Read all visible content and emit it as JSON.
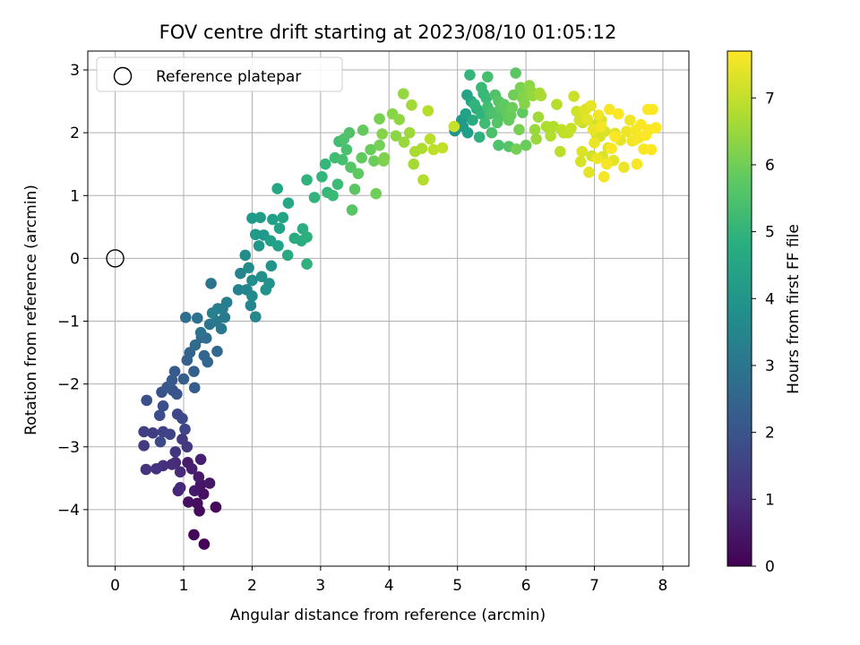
{
  "chart_data": {
    "type": "scatter",
    "title": "FOV centre drift starting at 2023/08/10 01:05:12",
    "xlabel": "Angular distance from reference (arcmin)",
    "ylabel": "Rotation from reference (arcmin)",
    "xlim": [
      -0.4,
      8.38
    ],
    "ylim": [
      -4.9,
      3.3
    ],
    "xticks": [
      0,
      1,
      2,
      3,
      4,
      5,
      6,
      7,
      8
    ],
    "yticks": [
      -4,
      -3,
      -2,
      -1,
      0,
      1,
      2,
      3
    ],
    "grid": true,
    "legend": {
      "position": "upper-left",
      "entries": [
        "Reference platepar"
      ]
    },
    "reference_point": {
      "x": 0,
      "y": 0,
      "marker": "open-circle"
    },
    "colorbar": {
      "label": "Hours from first FF file",
      "range": [
        0,
        7.7
      ],
      "ticks": [
        0,
        1,
        2,
        3,
        4,
        5,
        6,
        7
      ],
      "colormap": "viridis"
    },
    "points": [
      [
        1.3,
        -4.55,
        0.05
      ],
      [
        1.15,
        -4.4,
        0.1
      ],
      [
        1.47,
        -3.96,
        0.15
      ],
      [
        1.23,
        -4.02,
        0.2
      ],
      [
        1.2,
        -3.9,
        0.25
      ],
      [
        1.07,
        -3.88,
        0.3
      ],
      [
        1.29,
        -3.75,
        0.35
      ],
      [
        1.25,
        -3.6,
        0.4
      ],
      [
        1.38,
        -3.58,
        0.45
      ],
      [
        1.16,
        -3.7,
        0.5
      ],
      [
        1.22,
        -3.48,
        0.55
      ],
      [
        1.06,
        -3.25,
        0.6
      ],
      [
        1.12,
        -3.35,
        0.65
      ],
      [
        1.25,
        -3.2,
        0.7
      ],
      [
        0.92,
        -3.7,
        0.8
      ],
      [
        0.95,
        -3.65,
        0.85
      ],
      [
        0.88,
        -3.25,
        0.9
      ],
      [
        0.95,
        -3.4,
        0.95
      ],
      [
        0.83,
        -3.28,
        1.0
      ],
      [
        0.7,
        -3.3,
        1.05
      ],
      [
        0.6,
        -3.35,
        1.1
      ],
      [
        0.45,
        -3.36,
        1.15
      ],
      [
        0.88,
        -3.08,
        1.2
      ],
      [
        1.05,
        -3.0,
        1.25
      ],
      [
        0.98,
        -2.88,
        1.3
      ],
      [
        0.42,
        -2.98,
        1.35
      ],
      [
        0.55,
        -2.78,
        1.4
      ],
      [
        0.42,
        -2.76,
        1.45
      ],
      [
        0.7,
        -2.76,
        1.5
      ],
      [
        0.8,
        -2.8,
        1.55
      ],
      [
        1.02,
        -2.72,
        1.6
      ],
      [
        0.91,
        -2.48,
        1.65
      ],
      [
        0.98,
        -2.55,
        1.7
      ],
      [
        0.66,
        -2.92,
        1.75
      ],
      [
        0.65,
        -2.5,
        1.8
      ],
      [
        0.7,
        -2.35,
        1.85
      ],
      [
        0.46,
        -2.26,
        1.9
      ],
      [
        0.68,
        -2.13,
        1.95
      ],
      [
        0.84,
        -2.1,
        2.0
      ],
      [
        0.9,
        -2.16,
        2.05
      ],
      [
        0.76,
        -2.05,
        2.1
      ],
      [
        0.83,
        -1.94,
        2.15
      ],
      [
        0.87,
        -1.8,
        2.2
      ],
      [
        1.0,
        -1.92,
        2.25
      ],
      [
        1.16,
        -2.06,
        2.3
      ],
      [
        1.15,
        -1.8,
        2.35
      ],
      [
        1.05,
        -1.62,
        2.4
      ],
      [
        1.09,
        -1.5,
        2.45
      ],
      [
        1.3,
        -1.55,
        2.5
      ],
      [
        1.35,
        -1.65,
        2.55
      ],
      [
        1.49,
        -1.48,
        2.6
      ],
      [
        1.17,
        -1.38,
        2.65
      ],
      [
        1.26,
        -1.26,
        2.7
      ],
      [
        1.33,
        -1.27,
        2.75
      ],
      [
        1.03,
        -0.94,
        2.8
      ],
      [
        1.2,
        -0.95,
        2.85
      ],
      [
        1.25,
        -1.18,
        2.9
      ],
      [
        1.4,
        -0.4,
        2.95
      ],
      [
        1.38,
        -1.05,
        3.0
      ],
      [
        1.48,
        -1.0,
        3.05
      ],
      [
        1.55,
        -1.12,
        3.1
      ],
      [
        1.6,
        -0.94,
        3.15
      ],
      [
        1.57,
        -0.8,
        3.2
      ],
      [
        1.63,
        -0.7,
        3.25
      ],
      [
        1.5,
        -0.8,
        3.3
      ],
      [
        1.42,
        -0.87,
        3.35
      ],
      [
        1.8,
        -0.5,
        3.4
      ],
      [
        1.83,
        -0.24,
        3.45
      ],
      [
        1.92,
        -0.5,
        3.5
      ],
      [
        1.98,
        -0.75,
        3.55
      ]
    ],
    "points_b": [
      [
        2.05,
        -0.93,
        3.6
      ],
      [
        2.0,
        -0.6,
        3.65
      ],
      [
        1.95,
        -0.15,
        3.7
      ],
      [
        1.9,
        0.05,
        3.75
      ],
      [
        2.0,
        -0.35,
        3.8
      ],
      [
        2.14,
        -0.29,
        3.85
      ],
      [
        2.25,
        -0.4,
        3.9
      ],
      [
        2.2,
        -0.5,
        3.95
      ],
      [
        2.28,
        -0.12,
        4.0
      ],
      [
        2.1,
        0.2,
        4.05
      ],
      [
        2.17,
        0.37,
        4.1
      ],
      [
        2.05,
        0.38,
        4.15
      ],
      [
        2.0,
        0.64,
        4.2
      ],
      [
        2.12,
        0.65,
        4.25
      ],
      [
        2.3,
        0.62,
        4.3
      ],
      [
        2.27,
        0.28,
        4.35
      ],
      [
        2.38,
        0.2,
        4.4
      ],
      [
        2.4,
        0.48,
        4.45
      ],
      [
        2.45,
        0.65,
        4.5
      ],
      [
        2.37,
        1.11,
        4.55
      ],
      [
        2.53,
        0.88,
        4.6
      ],
      [
        2.52,
        0.05,
        4.65
      ],
      [
        2.62,
        0.32,
        4.7
      ],
      [
        2.72,
        0.28,
        4.75
      ],
      [
        2.74,
        0.47,
        4.8
      ],
      [
        2.8,
        0.34,
        4.85
      ],
      [
        2.8,
        -0.09,
        4.9
      ],
      [
        2.8,
        1.25,
        4.95
      ],
      [
        2.91,
        0.97,
        5.0
      ],
      [
        3.02,
        1.3,
        5.05
      ],
      [
        3.07,
        1.5,
        5.1
      ],
      [
        3.1,
        1.05,
        5.15
      ],
      [
        3.18,
        1.0,
        5.2
      ],
      [
        3.25,
        1.18,
        5.25
      ],
      [
        3.21,
        1.6,
        5.3
      ],
      [
        3.27,
        1.86,
        5.35
      ],
      [
        3.32,
        1.57,
        5.4
      ],
      [
        3.38,
        1.73,
        5.45
      ],
      [
        3.34,
        1.9,
        5.5
      ],
      [
        3.42,
        2.0,
        5.55
      ]
    ],
    "points_c": [
      [
        3.44,
        1.45,
        5.6
      ],
      [
        3.46,
        0.77,
        5.65
      ],
      [
        3.5,
        1.1,
        5.7
      ],
      [
        3.55,
        1.35,
        5.75
      ],
      [
        3.6,
        1.6,
        5.8
      ],
      [
        3.62,
        2.04,
        5.85
      ],
      [
        3.73,
        1.73,
        5.9
      ],
      [
        3.78,
        1.55,
        5.95
      ],
      [
        3.81,
        1.03,
        6.0
      ],
      [
        3.86,
        1.8,
        6.05
      ],
      [
        3.86,
        2.22,
        6.1
      ],
      [
        3.92,
        1.55,
        6.15
      ],
      [
        3.93,
        1.6,
        6.2
      ],
      [
        3.9,
        1.98,
        6.25
      ],
      [
        4.05,
        2.3,
        6.3
      ],
      [
        4.1,
        1.95,
        6.35
      ],
      [
        4.15,
        2.21,
        6.4
      ],
      [
        4.21,
        2.62,
        6.45
      ],
      [
        4.22,
        1.85,
        6.5
      ],
      [
        4.3,
        2.0,
        6.55
      ],
      [
        4.33,
        2.44,
        6.6
      ],
      [
        4.36,
        1.5,
        6.65
      ],
      [
        4.38,
        1.7,
        6.7
      ],
      [
        4.48,
        1.75,
        6.75
      ],
      [
        4.5,
        1.25,
        6.8
      ],
      [
        4.57,
        2.35,
        6.85
      ],
      [
        4.6,
        1.9,
        6.9
      ],
      [
        4.65,
        1.73,
        6.95
      ],
      [
        4.78,
        1.76,
        7.0
      ],
      [
        4.95,
        2.1,
        7.05
      ]
    ]
  },
  "series_all": {
    "points_d": [
      [
        4.96,
        2.03,
        4.0
      ],
      [
        5.06,
        2.2,
        4.1
      ],
      [
        5.08,
        2.1,
        4.2
      ],
      [
        5.15,
        2.0,
        4.3
      ],
      [
        5.12,
        2.3,
        4.4
      ],
      [
        5.14,
        2.6,
        4.5
      ],
      [
        5.2,
        2.5,
        4.6
      ],
      [
        5.22,
        2.2,
        4.7
      ],
      [
        5.28,
        2.38,
        4.8
      ],
      [
        5.32,
        1.93,
        4.9
      ],
      [
        5.35,
        2.3,
        5.0
      ],
      [
        5.38,
        2.62,
        5.1
      ],
      [
        5.42,
        2.55,
        5.2
      ],
      [
        5.4,
        2.15,
        5.3
      ],
      [
        5.44,
        2.41,
        5.35
      ],
      [
        5.47,
        2.3,
        5.4
      ],
      [
        5.5,
        2.0,
        5.45
      ],
      [
        5.52,
        2.32,
        5.5
      ],
      [
        5.55,
        2.6,
        5.55
      ],
      [
        5.58,
        2.16,
        5.6
      ],
      [
        5.6,
        2.5,
        5.65
      ],
      [
        5.63,
        2.4,
        5.7
      ],
      [
        5.68,
        2.45,
        5.75
      ],
      [
        5.72,
        2.3,
        5.8
      ],
      [
        5.75,
        2.2,
        5.85
      ],
      [
        5.78,
        2.28,
        5.9
      ],
      [
        5.8,
        2.4,
        5.95
      ],
      [
        5.82,
        2.6,
        6.0
      ],
      [
        5.86,
        1.74,
        6.05
      ],
      [
        5.9,
        2.05,
        6.1
      ],
      [
        5.92,
        2.72,
        6.15
      ],
      [
        5.95,
        2.55,
        6.2
      ],
      [
        5.98,
        2.46,
        6.25
      ],
      [
        6.02,
        2.6,
        6.3
      ],
      [
        6.05,
        2.75,
        6.35
      ],
      [
        6.08,
        2.65,
        6.4
      ],
      [
        6.1,
        2.59,
        6.45
      ],
      [
        6.13,
        2.05,
        6.5
      ],
      [
        6.15,
        1.9,
        6.55
      ],
      [
        6.18,
        2.25,
        6.6
      ],
      [
        6.2,
        2.63,
        6.65
      ],
      [
        6.22,
        2.59,
        6.7
      ],
      [
        6.3,
        2.1,
        6.75
      ],
      [
        6.36,
        1.95,
        6.8
      ],
      [
        6.45,
        2.45,
        6.85
      ],
      [
        6.5,
        1.7,
        6.9
      ],
      [
        6.52,
        2.05,
        6.95
      ],
      [
        6.62,
        2.0,
        7.0
      ],
      [
        6.66,
        2.07,
        7.05
      ],
      [
        6.7,
        2.58,
        7.1
      ],
      [
        6.74,
        2.34,
        7.15
      ],
      [
        6.78,
        2.2,
        7.2
      ],
      [
        6.8,
        1.54,
        7.25
      ],
      [
        6.82,
        1.7,
        7.28
      ],
      [
        6.85,
        2.35,
        7.31
      ],
      [
        6.88,
        2.38,
        7.34
      ],
      [
        6.9,
        2.21,
        7.37
      ],
      [
        6.92,
        1.37,
        7.4
      ],
      [
        6.95,
        2.43,
        7.43
      ],
      [
        6.98,
        2.05,
        7.46
      ],
      [
        7.0,
        1.84,
        7.49
      ],
      [
        7.04,
        1.59,
        7.52
      ],
      [
        7.06,
        2.28,
        7.55
      ],
      [
        7.1,
        2.1,
        7.58
      ],
      [
        7.14,
        1.3,
        7.6
      ],
      [
        7.18,
        1.5,
        7.62
      ],
      [
        7.22,
        2.37,
        7.64
      ],
      [
        7.25,
        1.75,
        7.66
      ],
      [
        7.3,
        1.94,
        7.68
      ],
      [
        7.35,
        2.3,
        7.7
      ]
    ],
    "points_e": [
      [
        5.18,
        2.92,
        5.1
      ],
      [
        5.44,
        2.89,
        5.4
      ],
      [
        5.85,
        2.95,
        5.7
      ],
      [
        5.6,
        1.8,
        5.5
      ],
      [
        5.75,
        1.78,
        5.6
      ],
      [
        5.35,
        2.72,
        5.2
      ],
      [
        5.25,
        2.45,
        5.0
      ],
      [
        5.65,
        2.27,
        5.55
      ],
      [
        5.95,
        2.32,
        5.75
      ],
      [
        6.0,
        1.8,
        5.9
      ],
      [
        6.4,
        2.1,
        6.8
      ],
      [
        6.55,
        2.0,
        6.9
      ],
      [
        6.83,
        2.16,
        7.05
      ],
      [
        7.0,
        2.12,
        7.2
      ],
      [
        7.08,
        1.94,
        7.25
      ],
      [
        7.12,
        1.62,
        7.3
      ],
      [
        7.2,
        1.76,
        7.35
      ],
      [
        7.28,
        1.56,
        7.4
      ],
      [
        7.38,
        1.88,
        7.45
      ],
      [
        7.43,
        1.45,
        7.5
      ],
      [
        7.47,
        2.02,
        7.52
      ],
      [
        7.52,
        2.2,
        7.54
      ],
      [
        7.55,
        1.87,
        7.56
      ],
      [
        7.58,
        1.88,
        7.58
      ],
      [
        7.6,
        2.04,
        7.6
      ],
      [
        7.62,
        1.5,
        7.62
      ],
      [
        7.65,
        1.92,
        7.63
      ],
      [
        7.68,
        2.13,
        7.64
      ],
      [
        7.72,
        1.74,
        7.65
      ],
      [
        7.75,
        1.96,
        7.66
      ],
      [
        7.78,
        2.37,
        7.67
      ],
      [
        7.8,
        2.05,
        7.68
      ],
      [
        7.83,
        1.73,
        7.69
      ],
      [
        7.85,
        2.37,
        7.69
      ],
      [
        7.9,
        2.08,
        7.7
      ],
      [
        7.03,
        1.97,
        7.22
      ],
      [
        7.15,
        2.02,
        7.28
      ],
      [
        6.96,
        1.63,
        7.18
      ],
      [
        7.3,
        1.99,
        7.36
      ],
      [
        7.1,
        2.2,
        7.26
      ]
    ]
  }
}
